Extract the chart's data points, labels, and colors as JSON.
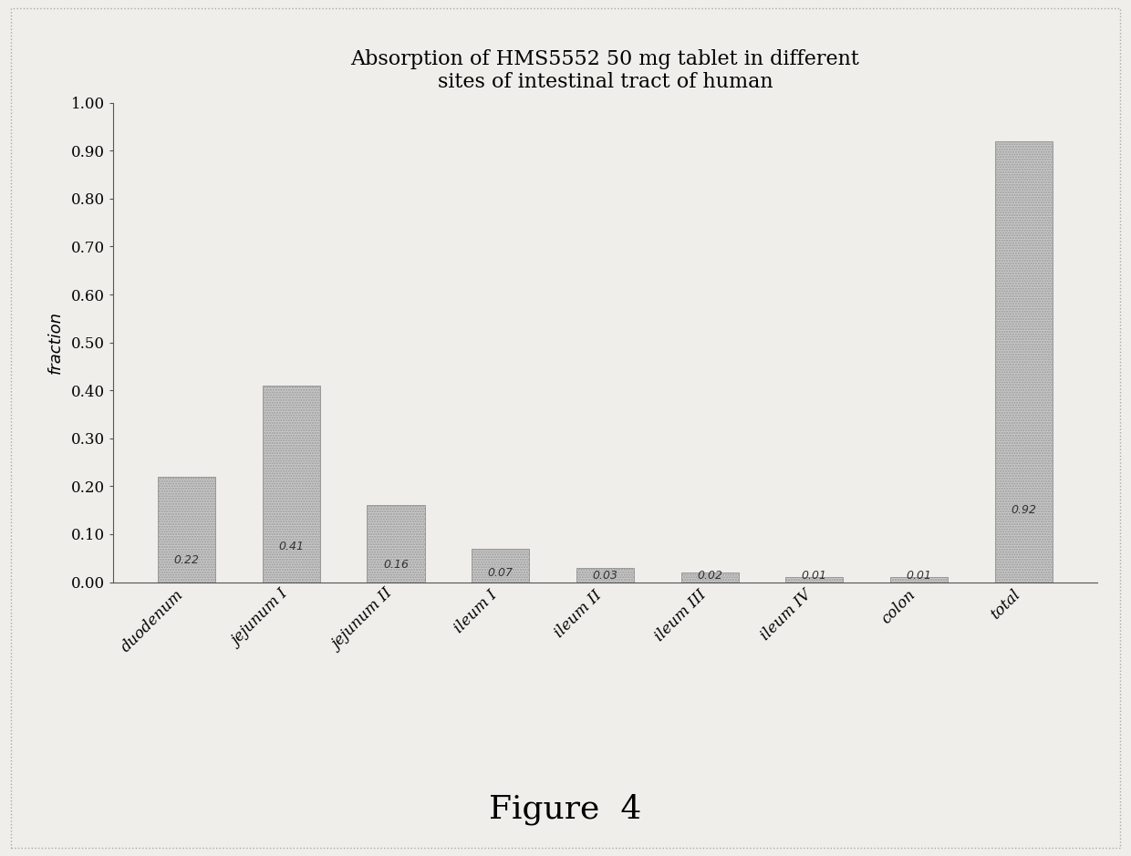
{
  "categories": [
    "duodenum",
    "jejunum I",
    "jejunum II",
    "ileum I",
    "ileum II",
    "ileum III",
    "ileum IV",
    "colon",
    "total"
  ],
  "values": [
    0.22,
    0.41,
    0.16,
    0.07,
    0.03,
    0.02,
    0.01,
    0.01,
    0.92
  ],
  "bar_labels": [
    "0.22",
    "0.41",
    "0.16",
    "0.07",
    "0.03",
    "0.02",
    "0.01",
    "0.01",
    "0.92"
  ],
  "title_line1": "Absorption of HMS5552 50 mg tablet in different",
  "title_line2": "sites of intestinal tract of human",
  "ylabel": "fraction",
  "ylim": [
    0.0,
    1.0
  ],
  "yticks": [
    0.0,
    0.1,
    0.2,
    0.3,
    0.4,
    0.5,
    0.6,
    0.7,
    0.8,
    0.9,
    1.0
  ],
  "bar_color": "#c8c8c8",
  "bar_edge_color": "#999999",
  "background_color": "#f0eeea",
  "plot_bg_color": "#f0eeea",
  "figure_caption": "Figure  4",
  "title_fontsize": 16,
  "label_fontsize": 13,
  "tick_fontsize": 12,
  "xtick_fontsize": 12,
  "caption_fontsize": 26,
  "bar_label_fontsize": 9,
  "bar_width": 0.55
}
